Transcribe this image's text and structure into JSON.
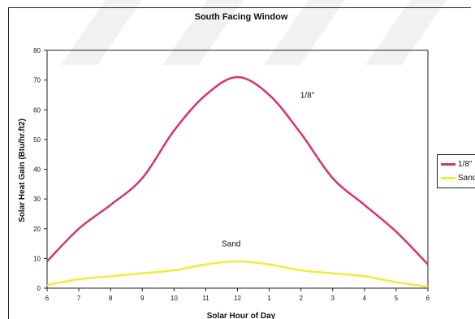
{
  "chart_data": {
    "type": "line",
    "title": "South Facing Window",
    "xlabel": "Solar Hour of Day",
    "ylabel": "Solar Heat Gain (Btu/hr.ft2)",
    "x_tick_labels": [
      "6",
      "7",
      "8",
      "9",
      "10",
      "11",
      "12",
      "1",
      "2",
      "3",
      "4",
      "5",
      "6"
    ],
    "x": [
      0,
      1,
      2,
      3,
      4,
      5,
      6,
      7,
      8,
      9,
      10,
      11,
      12
    ],
    "ylim": [
      0,
      80
    ],
    "yticks": [
      0,
      10,
      20,
      30,
      40,
      50,
      60,
      70,
      80
    ],
    "grid": false,
    "legend_placement": "right",
    "series": [
      {
        "name": "1/8\"",
        "color": "#d6336c",
        "values": [
          9,
          20,
          28,
          37,
          53,
          65,
          71,
          65,
          52,
          37,
          28,
          19,
          8
        ]
      },
      {
        "name": "Sand",
        "color": "#f2ea3a",
        "values": [
          1,
          3,
          4,
          5,
          6,
          8,
          9,
          8,
          6,
          5,
          4,
          2,
          0.5
        ]
      }
    ],
    "annotations": [
      {
        "text": "1/8\"",
        "x": 8.2,
        "y": 64
      },
      {
        "text": "Sand",
        "x": 5.8,
        "y": 14
      }
    ]
  },
  "legend": {
    "items": [
      {
        "label": "1/8\"",
        "color": "#d6336c"
      },
      {
        "label": "Sand",
        "color": "#f2ea3a"
      }
    ]
  }
}
